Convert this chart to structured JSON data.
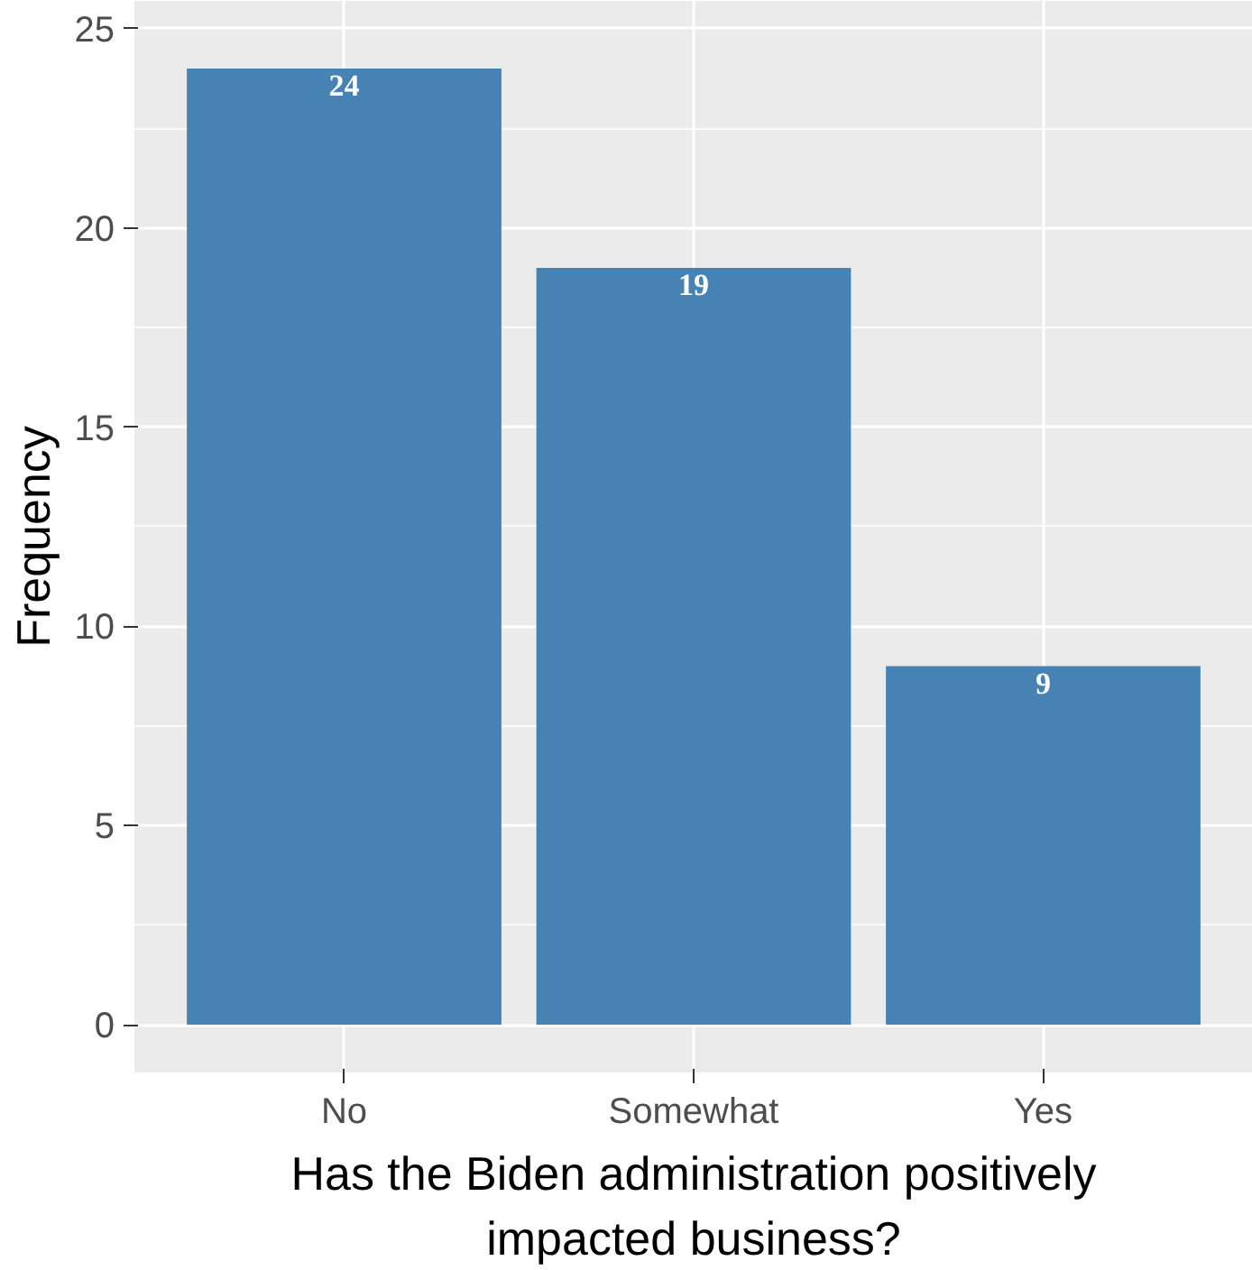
{
  "chart_data": {
    "type": "bar",
    "xlabel": "Has the Biden administration positively impacted business?",
    "ylabel": "Frequency",
    "categories": [
      "No",
      "Somewhat",
      "Yes"
    ],
    "values": [
      24,
      19,
      9
    ],
    "color": "#4682b4",
    "ylim": [
      -1.2,
      25.7
    ],
    "yticks": [
      0,
      5,
      10,
      15,
      20,
      25
    ],
    "grid": true,
    "data_labels": true
  }
}
